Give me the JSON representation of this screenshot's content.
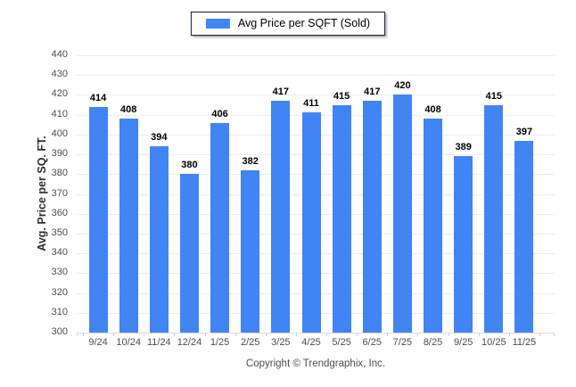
{
  "legend": {
    "label": "Avg Price per SQFT (Sold)"
  },
  "y_axis": {
    "title": "Avg. Price per SQ. FT."
  },
  "footer": {
    "copyright": "Copyright © Trendgraphix, Inc."
  },
  "colors": {
    "bar": "#4184f3",
    "grid": "#ececec",
    "axis_line": "#dcdcdc",
    "tick": "#cfcfcf",
    "tick_label": "#4a4c52",
    "value_label": "#000000",
    "legend_border": "#0d1f33",
    "footer_text": "#4d4d4d"
  },
  "chart_data": {
    "type": "bar",
    "categories": [
      "9/24",
      "10/24",
      "11/24",
      "12/24",
      "1/25",
      "2/25",
      "3/25",
      "4/25",
      "5/25",
      "6/25",
      "7/25",
      "8/25",
      "9/25",
      "10/25",
      "11/25"
    ],
    "values": [
      414,
      408,
      394,
      380,
      406,
      382,
      417,
      411,
      415,
      417,
      420,
      408,
      389,
      415,
      397
    ],
    "series_name": "Avg Price per SQFT (Sold)",
    "title": "",
    "xlabel": "",
    "ylabel": "Avg. Price per SQ. FT.",
    "ylim": [
      300,
      440
    ],
    "ytick_step": 10,
    "grid": true,
    "legend_position": "top-center",
    "value_labels_shown": true
  }
}
